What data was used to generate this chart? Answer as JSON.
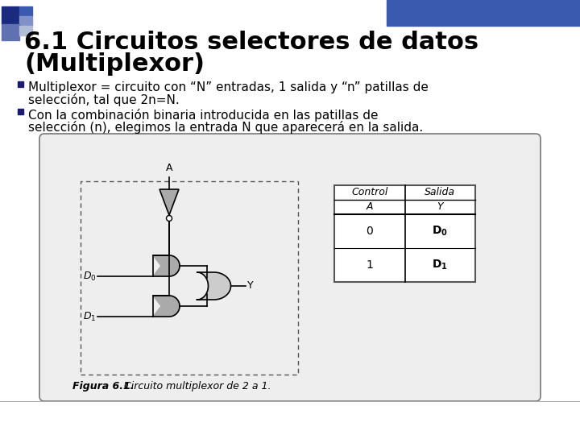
{
  "title_line1": "6.1 Circuitos selectores de datos",
  "title_line2": "(Multiplexor)",
  "title_fontsize": 22,
  "title_color": "#000000",
  "bg_color": "#ffffff",
  "bullet1_line1": "Multiplexor = circuito con “N” entradas, 1 salida y “n” patillas de",
  "bullet1_line2": "selección, tal que 2n=N.",
  "bullet2_line1": "Con la combinación binaria introducida en las patillas de",
  "bullet2_line2": "selección (n), elegimos la entrada N que aparecerá en la salida.",
  "body_fontsize": 11,
  "figure_caption_bold": "Figura 6.1.",
  "figure_caption_normal": "   Circuito multiplexor de 2 a 1.",
  "caption_fontsize": 9,
  "diagram_label_A": "A",
  "diagram_label_D0": "D0",
  "diagram_label_D1": "D1",
  "diagram_label_Y": "Y",
  "banner_colors": [
    "#1a2a6e",
    "#3a4a9e",
    "#6a7abe",
    "#9aabce",
    "#cacade"
  ],
  "bullet_color": "#1a1a6e",
  "table_header1_line1": "Control",
  "table_header1_line2": "A",
  "table_header2_line1": "Salida",
  "table_header2_line2": "Y",
  "table_row1_col1": "0",
  "table_row1_col2": "D0",
  "table_row2_col1": "1",
  "table_row2_col2": "D1"
}
